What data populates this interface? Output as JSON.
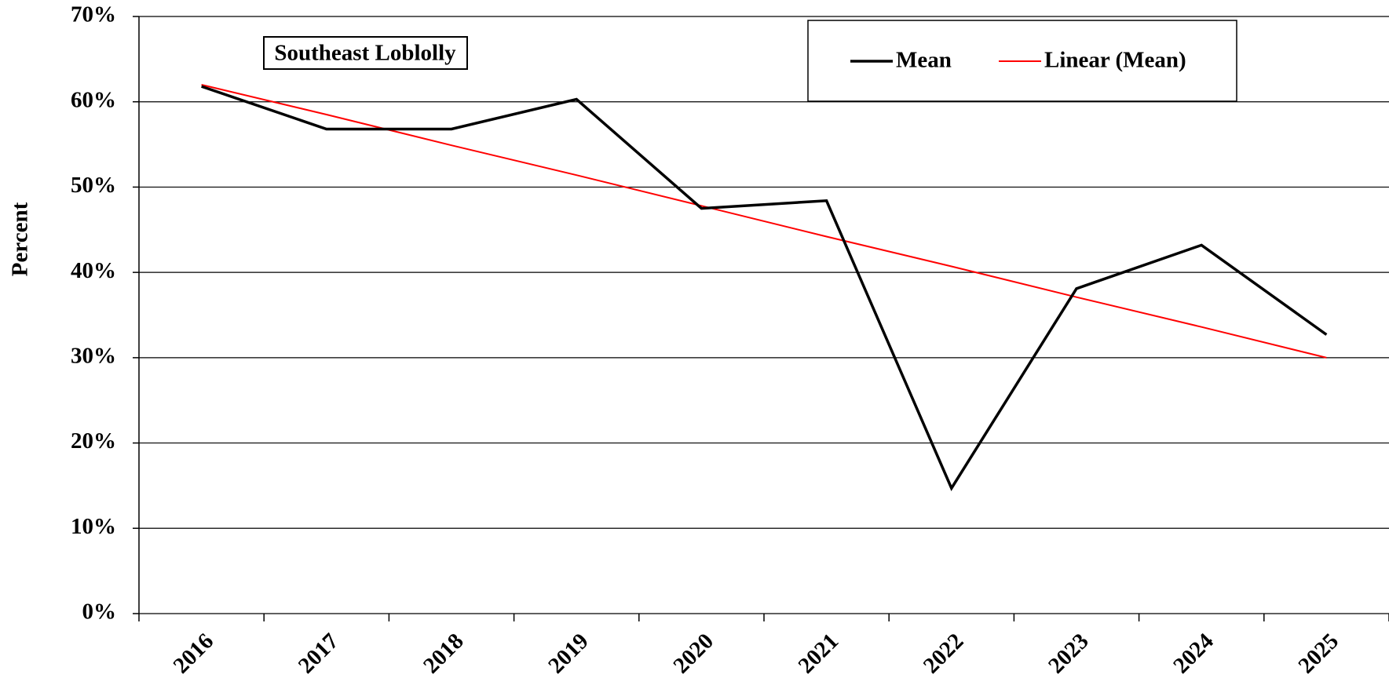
{
  "chart_data": {
    "type": "line",
    "annotation": "Southeast Loblolly",
    "y_label": "Percent",
    "categories": [
      "2016",
      "2017",
      "2018",
      "2019",
      "2020",
      "2021",
      "2022",
      "2023",
      "2024",
      "2025"
    ],
    "series": [
      {
        "name": "Mean",
        "color": "#000000",
        "values": [
          61.8,
          56.8,
          56.8,
          60.3,
          47.5,
          48.4,
          14.7,
          38.1,
          43.2,
          32.7
        ]
      },
      {
        "name": "Linear (Mean)",
        "color": "#ff0000",
        "values": [
          62.0,
          58.5,
          54.9,
          51.4,
          47.8,
          44.2,
          40.7,
          37.1,
          33.6,
          30.0
        ]
      }
    ],
    "ylim": [
      0,
      70
    ],
    "yticks": [
      {
        "value": 0,
        "label": "0%"
      },
      {
        "value": 10,
        "label": "10%"
      },
      {
        "value": 20,
        "label": "20%"
      },
      {
        "value": 30,
        "label": "30%"
      },
      {
        "value": 40,
        "label": "40%"
      },
      {
        "value": 50,
        "label": "50%"
      },
      {
        "value": 60,
        "label": "60%"
      },
      {
        "value": 70,
        "label": "70%"
      }
    ],
    "grid": true,
    "legend": "top-right"
  }
}
